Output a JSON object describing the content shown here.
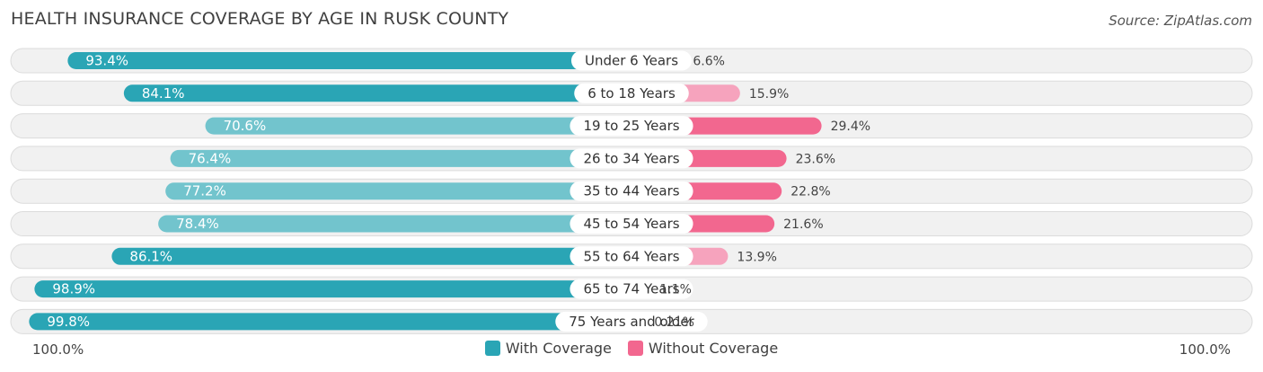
{
  "title": "HEALTH INSURANCE COVERAGE BY AGE IN RUSK COUNTY",
  "source": "Source: ZipAtlas.com",
  "axis": {
    "left_label": "100.0%",
    "right_label": "100.0%"
  },
  "colors": {
    "with_coverage": "#2aa5b5",
    "with_coverage_light": "#72c4cd",
    "without_coverage": "#f2678f",
    "without_coverage_light": "#f6a3bd",
    "row_background": "#f1f1f1",
    "row_border": "#dcdcdc"
  },
  "legend": {
    "with_label": "With Coverage",
    "without_label": "Without Coverage"
  },
  "chart_data": {
    "type": "bar",
    "orientation": "horizontal-diverging",
    "title": "HEALTH INSURANCE COVERAGE BY AGE IN RUSK COUNTY",
    "categories": [
      "Under 6 Years",
      "6 to 18 Years",
      "19 to 25 Years",
      "26 to 34 Years",
      "35 to 44 Years",
      "45 to 54 Years",
      "55 to 64 Years",
      "65 to 74 Years",
      "75 Years and older"
    ],
    "series": [
      {
        "name": "With Coverage",
        "values": [
          93.4,
          84.1,
          70.6,
          76.4,
          77.2,
          78.4,
          86.1,
          98.9,
          99.8
        ],
        "labels": [
          "93.4%",
          "84.1%",
          "70.6%",
          "76.4%",
          "77.2%",
          "78.4%",
          "86.1%",
          "98.9%",
          "99.8%"
        ]
      },
      {
        "name": "Without Coverage",
        "values": [
          6.6,
          15.9,
          29.4,
          23.6,
          22.8,
          21.6,
          13.9,
          1.1,
          0.21
        ],
        "labels": [
          "6.6%",
          "15.9%",
          "29.4%",
          "23.6%",
          "22.8%",
          "21.6%",
          "13.9%",
          "1.1%",
          "0.21%"
        ]
      }
    ],
    "xlim": [
      -100,
      100
    ],
    "legend_position": "bottom-center"
  }
}
